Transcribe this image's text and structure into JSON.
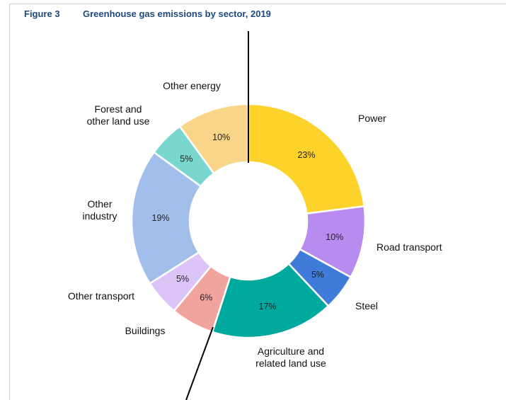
{
  "figure": {
    "number": "Figure 3",
    "title": "Greenhouse gas emissions by sector, 2019"
  },
  "chart_data": {
    "type": "pie",
    "title": "Greenhouse gas emissions by sector, 2019",
    "donut": true,
    "unit": "%",
    "slices": [
      {
        "label": [
          "Power"
        ],
        "value": 23,
        "display": "23%",
        "color": "#fdd22b"
      },
      {
        "label": [
          "Road transport"
        ],
        "value": 10,
        "display": "10%",
        "color": "#b88bf0"
      },
      {
        "label": [
          "Steel"
        ],
        "value": 5,
        "display": "5%",
        "color": "#3f7bd8"
      },
      {
        "label": [
          "Agriculture and",
          "related land use"
        ],
        "value": 17,
        "display": "17%",
        "color": "#00a99d"
      },
      {
        "label": [
          "Buildings"
        ],
        "value": 6,
        "display": "6%",
        "color": "#f1a39e"
      },
      {
        "label": [
          "Other transport"
        ],
        "value": 5,
        "display": "5%",
        "color": "#dcc4f9"
      },
      {
        "label": [
          "Other",
          "industry"
        ],
        "value": 19,
        "display": "19%",
        "color": "#a1bfea"
      },
      {
        "label": [
          "Forest and",
          "other land use"
        ],
        "value": 5,
        "display": "5%",
        "color": "#7ad7d0"
      },
      {
        "label": [
          "Other energy"
        ],
        "value": 10,
        "display": "10%",
        "color": "#f8d588"
      }
    ]
  }
}
